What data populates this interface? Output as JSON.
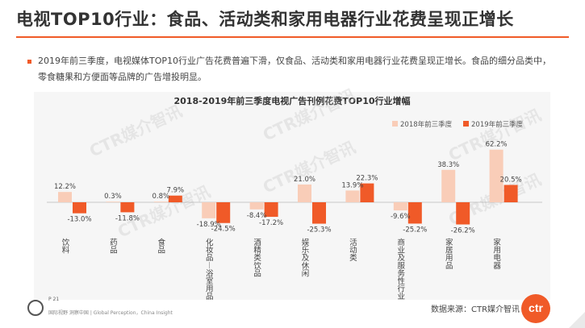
{
  "header": {
    "title": "电视TOP10行业：食品、活动类和家用电器行业花费呈现正增长"
  },
  "summary": {
    "text": "2019年前三季度，电视媒体TOP10行业广告花费普遍下滑，仅食品、活动类和家用电器行业花费呈现正增长。食品的细分品类中，零食糖果和方便面等品牌的广告增投明显。"
  },
  "colors": {
    "accent": "#f05a28",
    "series_2018": "#f9cdb8",
    "series_2019": "#f05a28"
  },
  "chart_data": {
    "type": "bar",
    "title": "2018-2019年前三季度电视广告刊例花费TOP10行业增幅",
    "categories": [
      "饮料",
      "药品",
      "食品",
      "化妆品/浴室用品",
      "酒精类饮品",
      "娱乐及休闲",
      "活动类",
      "商业及服务性行业",
      "家居用品",
      "家用电器"
    ],
    "series": [
      {
        "name": "2018年前三季度",
        "values": [
          12.2,
          0.3,
          0.8,
          -18.9,
          -8.4,
          21.0,
          13.9,
          -9.6,
          38.3,
          62.2
        ]
      },
      {
        "name": "2019年前三季度",
        "values": [
          -13.0,
          -11.8,
          7.9,
          -24.5,
          -17.2,
          -25.3,
          22.3,
          -25.2,
          -26.2,
          20.5
        ]
      }
    ],
    "value_suffix": "%",
    "legend_position": "top-right",
    "grid": false
  },
  "watermark": {
    "text": "CTR媒介智讯"
  },
  "footer": {
    "page": "P 21",
    "tagline": "国际视野 洞察中国 | Global Perception，China Insight",
    "source": "数据来源：CTR媒介智讯",
    "brand": "ctr"
  }
}
